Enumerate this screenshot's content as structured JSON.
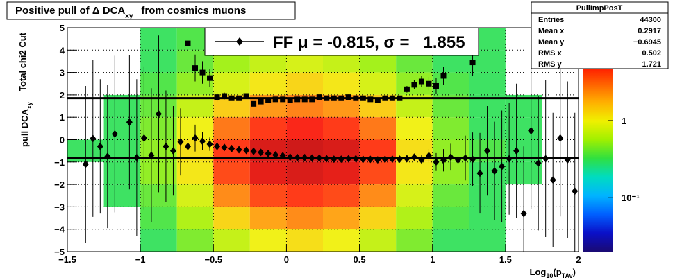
{
  "chart_data": {
    "type": "histogram2d",
    "title": [
      "Positive pull of Δ DCA",
      "xy",
      "from cosmics muons"
    ],
    "y_label": [
      "pull DCA",
      "xy"
    ],
    "y_label2": "Total chi2 Cut",
    "x_label": [
      "Log",
      "10",
      "(p",
      "TAv",
      ")"
    ],
    "xlim": [
      -1.5,
      2
    ],
    "ylim": [
      -5,
      5
    ],
    "xticks": [
      {
        "value": -1.5,
        "label": "−1.5"
      },
      {
        "value": -1,
        "label": "−1"
      },
      {
        "value": -0.5,
        "label": "−0.5"
      },
      0,
      0.5,
      1,
      1.5,
      2
    ],
    "yticks": [
      {
        "value": -5,
        "label": "−5"
      },
      {
        "value": -4,
        "label": "−4"
      },
      {
        "value": -3,
        "label": "−3"
      },
      {
        "value": -2,
        "label": "−2"
      },
      {
        "value": -1,
        "label": "−1"
      },
      0,
      1,
      2,
      3,
      4,
      5
    ],
    "grid": true,
    "zlim": [
      0.02,
      16
    ],
    "zlog": true,
    "zticks": [
      1,
      {
        "value": 0.1,
        "label": "10⁻¹"
      }
    ],
    "palette": [
      "#1a0a73",
      "#0a10c8",
      "#0060ff",
      "#00b4ff",
      "#00dcc0",
      "#30e040",
      "#a0f000",
      "#f0f000",
      "#ffb000",
      "#ff6000",
      "#ff1000",
      "#c80000",
      "#800000"
    ],
    "heatmap": {
      "xbins": [
        -1.5,
        -1.25,
        -1,
        -0.75,
        -0.5,
        -0.25,
        0,
        0.25,
        0.5,
        0.75,
        1,
        1.25,
        1.5,
        1.75,
        2
      ],
      "ybins": [
        5,
        4,
        3,
        2,
        1,
        0,
        -1,
        -2,
        -3,
        -4,
        -5
      ],
      "z": [
        [
          null,
          null,
          0.3,
          0.35,
          0.45,
          0.5,
          0.55,
          0.5,
          0.45,
          0.35,
          0.3,
          0.3,
          null,
          null
        ],
        [
          null,
          null,
          0.3,
          0.4,
          0.55,
          0.7,
          0.8,
          0.7,
          0.55,
          0.4,
          0.3,
          0.3,
          null,
          null
        ],
        [
          null,
          null,
          0.35,
          0.5,
          0.8,
          1.1,
          1.3,
          1.1,
          0.8,
          0.5,
          0.35,
          0.3,
          null,
          null
        ],
        [
          null,
          0.3,
          0.4,
          0.7,
          1.4,
          2.2,
          2.6,
          2.2,
          1.4,
          0.7,
          0.4,
          0.3,
          0.3,
          null
        ],
        [
          null,
          0.3,
          0.45,
          1.0,
          2.8,
          4.5,
          5.5,
          4.5,
          2.8,
          1.0,
          0.45,
          0.3,
          0.3,
          null
        ],
        [
          0.3,
          0.3,
          0.5,
          1.2,
          4.5,
          8,
          9,
          8,
          4.5,
          1.2,
          0.5,
          0.35,
          0.3,
          null
        ],
        [
          null,
          0.3,
          0.5,
          1.1,
          4,
          7,
          8,
          7,
          4,
          1.1,
          0.5,
          0.3,
          0.3,
          null
        ],
        [
          null,
          0.3,
          0.4,
          0.8,
          2.4,
          4,
          4.5,
          4,
          2.4,
          0.8,
          0.4,
          0.3,
          null,
          null
        ],
        [
          null,
          null,
          0.35,
          0.6,
          1.3,
          2,
          2.4,
          2,
          1.3,
          0.6,
          0.35,
          0.3,
          null,
          null
        ],
        [
          null,
          null,
          0.3,
          0.45,
          0.7,
          1,
          1.2,
          1,
          0.7,
          0.45,
          0.3,
          0.3,
          null,
          null
        ]
      ]
    },
    "series": [
      {
        "marker": "diamond",
        "color": "#000000",
        "x": [
          -1.375,
          -1.325,
          -1.275,
          -1.225,
          -1.175,
          -1.075,
          -1.025,
          -0.975,
          -0.925,
          -0.875,
          -0.825,
          -0.775,
          -0.725,
          -0.675,
          -0.625,
          -0.575,
          -0.525,
          -0.475,
          -0.425,
          -0.375,
          -0.325,
          -0.275,
          -0.225,
          -0.175,
          -0.125,
          -0.075,
          -0.025,
          0.025,
          0.075,
          0.125,
          0.175,
          0.225,
          0.275,
          0.325,
          0.375,
          0.425,
          0.475,
          0.525,
          0.575,
          0.625,
          0.675,
          0.725,
          0.775,
          0.825,
          0.875,
          0.925,
          0.975,
          1.025,
          1.075,
          1.125,
          1.175,
          1.225,
          1.275,
          1.325,
          1.375,
          1.425,
          1.475,
          1.525,
          1.575,
          1.625,
          1.675,
          1.725,
          1.775,
          1.825,
          1.875,
          1.925,
          1.975
        ],
        "values": [
          -1.1,
          0.05,
          -0.3,
          -0.75,
          0.25,
          0.78,
          -0.8,
          0.07,
          -0.7,
          1.15,
          -0.3,
          -0.5,
          -0.1,
          -0.3,
          0.07,
          -0.07,
          -0.2,
          -0.3,
          -0.35,
          -0.4,
          -0.45,
          -0.48,
          -0.52,
          -0.57,
          -0.62,
          -0.68,
          -0.72,
          -0.78,
          -0.8,
          -0.8,
          -0.82,
          -0.82,
          -0.85,
          -0.87,
          -0.87,
          -0.85,
          -0.85,
          -0.88,
          -0.88,
          -0.9,
          -0.88,
          -0.87,
          -0.87,
          -0.85,
          -0.78,
          -0.9,
          -0.72,
          -1.0,
          -0.92,
          -0.78,
          -0.9,
          -0.82,
          -0.88,
          -1.5,
          -0.5,
          -1.4,
          -1.2,
          -0.85,
          -0.5,
          -3.3,
          0.4,
          -1.05,
          -0.85,
          -1.8,
          0.07,
          -0.9,
          -2.3
        ],
        "errors": [
          3.5,
          3.5,
          3.0,
          3.2,
          3.5,
          3.0,
          3.5,
          3.2,
          3.0,
          3.5,
          2.5,
          2.0,
          1.5,
          1.2,
          0.6,
          0.4,
          0.3,
          0.2,
          0.15,
          0.12,
          0.08,
          0.08,
          0.08,
          0.08,
          0.08,
          0.08,
          0.08,
          0.08,
          0.08,
          0.08,
          0.08,
          0.08,
          0.08,
          0.08,
          0.08,
          0.08,
          0.08,
          0.08,
          0.08,
          0.08,
          0.08,
          0.08,
          0.08,
          0.08,
          0.15,
          0.2,
          0.3,
          0.4,
          0.5,
          0.6,
          0.8,
          1.0,
          1.2,
          1.8,
          2.0,
          2.2,
          2.5,
          2.5,
          3.0,
          3.0,
          3.5,
          3.0,
          3.5,
          3.0,
          3.5,
          3.5,
          3.5
        ]
      },
      {
        "marker": "square",
        "color": "#000000",
        "x": [
          -0.675,
          -0.625,
          -0.575,
          -0.525,
          -0.475,
          -0.425,
          -0.375,
          -0.325,
          -0.275,
          -0.225,
          -0.175,
          -0.125,
          -0.075,
          -0.025,
          0.025,
          0.075,
          0.125,
          0.175,
          0.225,
          0.275,
          0.325,
          0.375,
          0.425,
          0.475,
          0.525,
          0.575,
          0.625,
          0.675,
          0.725,
          0.775,
          0.825,
          0.875,
          0.925,
          0.975,
          1.025,
          1.075,
          1.275
        ],
        "values": [
          4.3,
          3.2,
          3.0,
          2.75,
          1.9,
          1.95,
          1.85,
          1.85,
          1.95,
          1.6,
          1.7,
          1.75,
          1.8,
          1.8,
          1.75,
          1.8,
          1.8,
          1.8,
          1.9,
          1.85,
          1.85,
          1.85,
          1.9,
          1.85,
          1.85,
          1.8,
          1.75,
          1.85,
          1.85,
          1.85,
          2.25,
          2.45,
          2.6,
          2.5,
          2.4,
          2.85,
          3.45
        ],
        "errors": [
          0.8,
          0.6,
          0.5,
          0.4,
          0.2,
          0.15,
          0.08,
          0.08,
          0.08,
          0.08,
          0.08,
          0.08,
          0.08,
          0.08,
          0.08,
          0.08,
          0.08,
          0.08,
          0.08,
          0.08,
          0.08,
          0.08,
          0.08,
          0.08,
          0.08,
          0.08,
          0.08,
          0.08,
          0.08,
          0.08,
          0.15,
          0.2,
          0.25,
          0.3,
          0.35,
          0.4,
          0.6
        ]
      }
    ],
    "fit_lines": [
      -0.815,
      1.855
    ],
    "legend": {
      "label": "FF μ = -0.815, σ =   1.855"
    },
    "stats": {
      "title": "PullImpPosT",
      "rows": [
        [
          "Entries",
          "44300"
        ],
        [
          "Mean x",
          "0.2917"
        ],
        [
          "Mean y",
          "−0.6945"
        ],
        [
          "RMS x",
          "0.502"
        ],
        [
          "RMS y",
          "1.721"
        ]
      ]
    }
  }
}
